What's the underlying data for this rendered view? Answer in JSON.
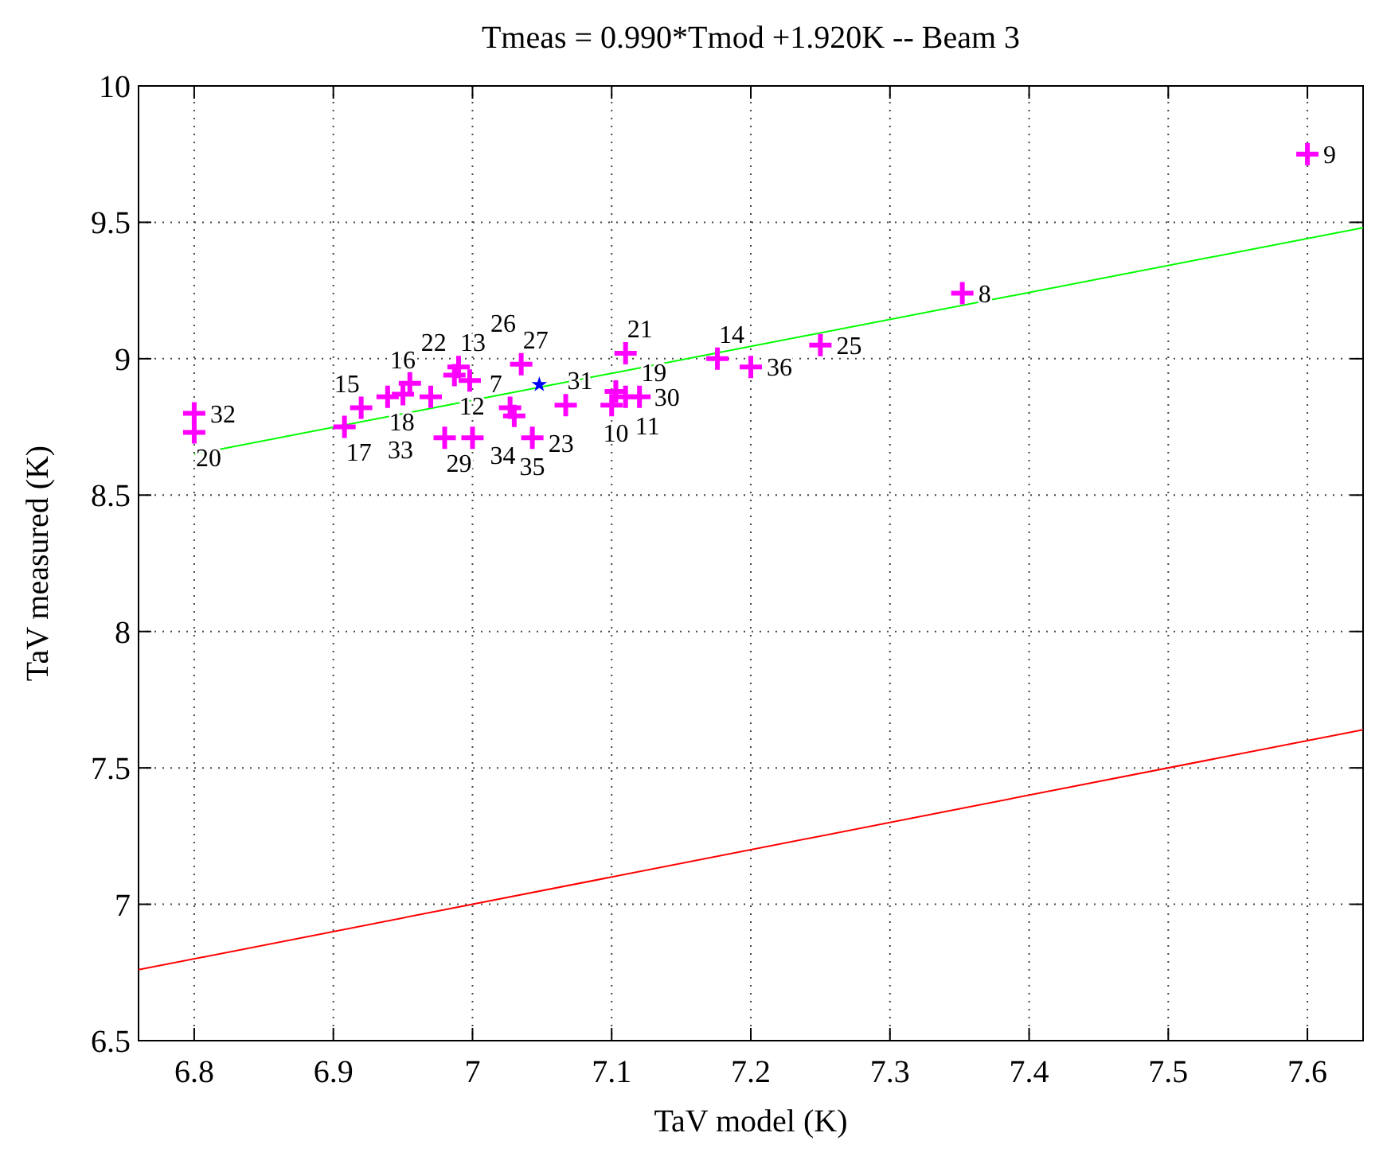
{
  "chart_data": {
    "type": "scatter",
    "title": "Tmeas = 0.990*Tmod +1.920K -- Beam 3",
    "xlabel": "TaV model (K)",
    "ylabel": "TaV measured (K)",
    "xlim": [
      6.76,
      7.64
    ],
    "ylim": [
      6.5,
      10
    ],
    "xticks": [
      6.8,
      6.9,
      7,
      7.1,
      7.2,
      7.3,
      7.4,
      7.5,
      7.6
    ],
    "yticks": [
      6.5,
      7,
      7.5,
      8,
      8.5,
      9,
      9.5,
      10
    ],
    "grid": true,
    "series": [
      {
        "color": "#ff00ff",
        "marker": "cross",
        "x": [
          6.8,
          6.8,
          6.908,
          6.92,
          6.939,
          6.95,
          6.955,
          6.97,
          6.987,
          6.99,
          6.998,
          6.98,
          7.0,
          7.027,
          7.03,
          7.035,
          7.043,
          7.067,
          7.103,
          7.1,
          7.11,
          7.12,
          7.11,
          7.176,
          7.2,
          7.25,
          7.352,
          7.6
        ],
        "values": [
          8.8,
          8.73,
          8.75,
          8.82,
          8.86,
          8.87,
          8.91,
          8.86,
          8.94,
          8.97,
          8.92,
          8.71,
          8.71,
          8.82,
          8.79,
          8.98,
          8.71,
          8.83,
          8.88,
          8.83,
          8.86,
          8.86,
          9.02,
          9.0,
          8.97,
          9.05,
          9.24,
          9.75
        ]
      },
      {
        "color": "#0000ff",
        "marker": "star",
        "x": [
          7.048
        ],
        "values": [
          8.905
        ]
      },
      {
        "type": "line",
        "color": "#00ff00",
        "line_style": "solid",
        "marker": "none",
        "x": [
          6.8,
          7.64
        ],
        "values": [
          8.65,
          9.48
        ]
      },
      {
        "type": "line",
        "color": "#ff0000",
        "line_style": "solid",
        "marker": "none",
        "x": [
          6.76,
          7.64
        ],
        "values": [
          6.76,
          7.64
        ]
      }
    ],
    "annotations": [
      {
        "text": "32",
        "x": 6.8,
        "y": 8.8
      },
      {
        "text": "20",
        "x": 6.8,
        "y": 8.73
      },
      {
        "text": "17",
        "x": 6.908,
        "y": 8.75
      },
      {
        "text": "15",
        "x": 6.92,
        "y": 8.82
      },
      {
        "text": "18",
        "x": 6.939,
        "y": 8.86
      },
      {
        "text": "16",
        "x": 6.95,
        "y": 8.87
      },
      {
        "text": "22",
        "x": 6.955,
        "y": 8.91
      },
      {
        "text": "33",
        "x": 6.97,
        "y": 8.86
      },
      {
        "text": "12",
        "x": 6.987,
        "y": 8.94
      },
      {
        "text": "13",
        "x": 6.99,
        "y": 8.97
      },
      {
        "text": "26",
        "x": 6.998,
        "y": 8.92
      },
      {
        "text": "29",
        "x": 6.98,
        "y": 8.71
      },
      {
        "text": "34",
        "x": 7.0,
        "y": 8.71
      },
      {
        "text": "7",
        "x": 7.027,
        "y": 8.82
      },
      {
        "text": "23",
        "x": 7.03,
        "y": 8.79
      },
      {
        "text": "27",
        "x": 7.035,
        "y": 8.98
      },
      {
        "text": "35",
        "x": 7.043,
        "y": 8.71
      },
      {
        "text": "31",
        "x": 7.067,
        "y": 8.83
      },
      {
        "text": "10",
        "x": 7.103,
        "y": 8.88
      },
      {
        "text": "11",
        "x": 7.1,
        "y": 8.83
      },
      {
        "text": "30",
        "x": 7.11,
        "y": 8.86
      },
      {
        "text": "19",
        "x": 7.12,
        "y": 8.86
      },
      {
        "text": "21",
        "x": 7.11,
        "y": 9.02
      },
      {
        "text": "14",
        "x": 7.176,
        "y": 9.0
      },
      {
        "text": "36",
        "x": 7.2,
        "y": 8.97
      },
      {
        "text": "25",
        "x": 7.25,
        "y": 9.05
      },
      {
        "text": "8",
        "x": 7.352,
        "y": 9.24
      },
      {
        "text": "9",
        "x": 7.6,
        "y": 9.75
      }
    ]
  }
}
